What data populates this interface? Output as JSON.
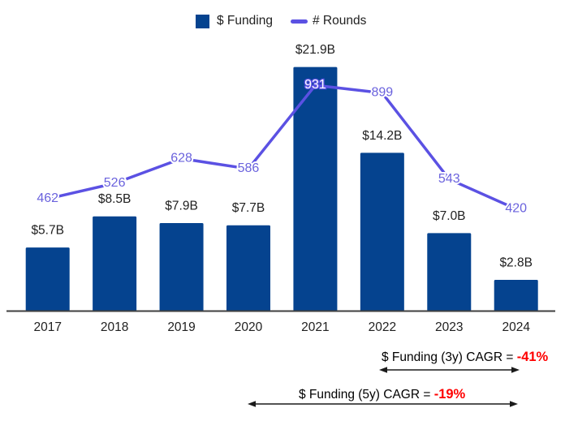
{
  "legend": {
    "funding_label": "$ Funding",
    "rounds_label": "# Rounds"
  },
  "chart_data": {
    "type": "bar+line",
    "categories": [
      "2017",
      "2018",
      "2019",
      "2020",
      "2021",
      "2022",
      "2023",
      "2024"
    ],
    "series": [
      {
        "name": "$ Funding",
        "type": "bar",
        "unit": "$B",
        "values": [
          5.7,
          8.5,
          7.9,
          7.7,
          21.9,
          14.2,
          7.0,
          2.8
        ],
        "labels": [
          "$5.7B",
          "$8.5B",
          "$7.9B",
          "$7.7B",
          "$21.9B",
          "$14.2B",
          "$7.0B",
          "$2.8B"
        ],
        "color": "#05438f"
      },
      {
        "name": "# Rounds",
        "type": "line",
        "values": [
          462,
          526,
          628,
          586,
          931,
          899,
          543,
          420
        ],
        "color": "#5b51e3",
        "label_color": "#6a62dd"
      }
    ],
    "title": "",
    "xlabel": "",
    "ylabel": "",
    "legend_position": "top",
    "grid": false,
    "value_axis_visible": false,
    "text_color": "#1f1f1f",
    "axis_line_color": "#3f3f3f"
  },
  "annotations": {
    "cagr_3y": {
      "label": "$ Funding (3y) CAGR = ",
      "value": "-41%",
      "span_years": [
        "2022",
        "2024"
      ]
    },
    "cagr_5y": {
      "label": "$ Funding (5y) CAGR = ",
      "value": "-19%",
      "span_years": [
        "2020",
        "2024"
      ]
    },
    "value_color": "#ff0000",
    "arrow_color": "#1a1a1a"
  }
}
